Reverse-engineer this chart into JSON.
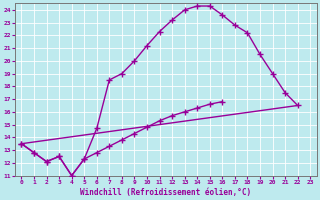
{
  "xlabel": "Windchill (Refroidissement éolien,°C)",
  "bg_color": "#beeaee",
  "line_color": "#990099",
  "xlim": [
    -0.5,
    23.5
  ],
  "ylim": [
    11,
    24.5
  ],
  "xticks": [
    0,
    1,
    2,
    3,
    4,
    5,
    6,
    7,
    8,
    9,
    10,
    11,
    12,
    13,
    14,
    15,
    16,
    17,
    18,
    19,
    20,
    21,
    22,
    23
  ],
  "yticks": [
    11,
    12,
    13,
    14,
    15,
    16,
    17,
    18,
    19,
    20,
    21,
    22,
    23,
    24
  ],
  "line1_x": [
    0,
    1,
    2,
    3,
    4,
    5,
    6,
    7,
    8,
    9,
    10,
    11,
    12,
    13,
    14,
    15,
    16,
    17,
    18,
    19,
    20,
    21,
    22
  ],
  "line1_y": [
    13.5,
    12.8,
    12.1,
    12.5,
    11.0,
    12.3,
    14.7,
    18.5,
    19.0,
    20.0,
    21.2,
    22.3,
    23.2,
    24.0,
    24.3,
    24.3,
    23.6,
    22.8,
    22.2,
    20.5,
    19.0,
    17.5,
    16.5
  ],
  "line2_x": [
    0,
    1,
    2,
    3,
    4,
    5,
    6,
    7,
    8,
    9,
    10,
    11,
    12,
    13,
    14,
    15,
    16
  ],
  "line2_y": [
    13.5,
    12.8,
    12.1,
    12.5,
    11.0,
    12.3,
    12.8,
    13.3,
    13.8,
    14.3,
    14.8,
    15.3,
    15.7,
    16.0,
    16.3,
    16.6,
    16.8
  ],
  "line3_x": [
    0,
    22
  ],
  "line3_y": [
    13.5,
    16.5
  ]
}
